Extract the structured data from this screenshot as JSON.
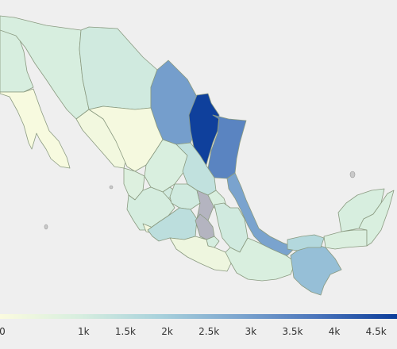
{
  "colors": {
    "background": "#efefef",
    "no_data": "#b4b4c0",
    "scale": [
      "#fbfbdf",
      "#d7eedf",
      "#a9d2dc",
      "#7da6cf",
      "#4a74bb",
      "#0c3d9a"
    ]
  },
  "legend": {
    "min": 0,
    "max": 4750,
    "ticks": [
      {
        "value": 0,
        "label": "0"
      },
      {
        "value": 1000,
        "label": "1k"
      },
      {
        "value": 1500,
        "label": "1.5k"
      },
      {
        "value": 2000,
        "label": "2k"
      },
      {
        "value": 2500,
        "label": "2.5k"
      },
      {
        "value": 3000,
        "label": "3k"
      },
      {
        "value": 3500,
        "label": "3.5k"
      },
      {
        "value": 4000,
        "label": "4k"
      },
      {
        "value": 4500,
        "label": "4.5k"
      }
    ]
  },
  "map_data": {
    "type": "choropleth",
    "region": "Mexico",
    "states": [
      {
        "name": "Baja California",
        "value": 950
      },
      {
        "name": "Baja California Sur",
        "value": 100
      },
      {
        "name": "Sonora",
        "value": 950
      },
      {
        "name": "Chihuahua",
        "value": 1100
      },
      {
        "name": "Coahuila",
        "value": 3000
      },
      {
        "name": "Nuevo León",
        "value": 4700
      },
      {
        "name": "Tamaulipas",
        "value": 3500
      },
      {
        "name": "Sinaloa",
        "value": 250
      },
      {
        "name": "Durango",
        "value": 150
      },
      {
        "name": "Zacatecas",
        "value": 900
      },
      {
        "name": "San Luis Potosí",
        "value": 1400
      },
      {
        "name": "Nayarit",
        "value": 800
      },
      {
        "name": "Aguascalientes",
        "value": 1100
      },
      {
        "name": "Jalisco",
        "value": 1000
      },
      {
        "name": "Guanajuato",
        "value": 1100
      },
      {
        "name": "Querétaro",
        "value": null
      },
      {
        "name": "Hidalgo",
        "value": 900
      },
      {
        "name": "Colima",
        "value": 200
      },
      {
        "name": "Michoacán",
        "value": 1500
      },
      {
        "name": "Estado de México",
        "value": null
      },
      {
        "name": "Ciudad de México",
        "value": 200
      },
      {
        "name": "Morelos",
        "value": 1000
      },
      {
        "name": "Tlaxcala",
        "value": 1500
      },
      {
        "name": "Puebla",
        "value": 1100
      },
      {
        "name": "Veracruz",
        "value": 2900
      },
      {
        "name": "Guerrero",
        "value": 350
      },
      {
        "name": "Oaxaca",
        "value": 900
      },
      {
        "name": "Chiapas",
        "value": 2300
      },
      {
        "name": "Tabasco",
        "value": 1700
      },
      {
        "name": "Campeche",
        "value": 850
      },
      {
        "name": "Yucatán",
        "value": 950
      },
      {
        "name": "Quintana Roo",
        "value": 900
      }
    ]
  }
}
